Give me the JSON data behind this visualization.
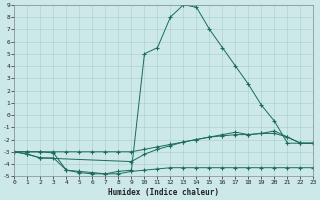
{
  "xlabel": "Humidex (Indice chaleur)",
  "bg_color": "#cce8e8",
  "grid_color": "#aacccc",
  "line_color": "#1a6b5a",
  "ylim": [
    -5,
    9
  ],
  "xlim": [
    0,
    23
  ],
  "yticks": [
    -5,
    -4,
    -3,
    -2,
    -1,
    0,
    1,
    2,
    3,
    4,
    5,
    6,
    7,
    8,
    9
  ],
  "xticks": [
    0,
    1,
    2,
    3,
    4,
    5,
    6,
    7,
    8,
    9,
    10,
    11,
    12,
    13,
    14,
    15,
    16,
    17,
    18,
    19,
    20,
    21,
    22,
    23
  ],
  "s1_x": [
    0,
    1,
    2,
    3,
    4,
    5,
    6,
    7,
    8,
    9,
    10,
    11,
    12,
    13,
    14,
    15,
    16,
    17,
    18,
    19,
    20,
    21,
    22,
    23
  ],
  "s1_y": [
    -3,
    -3.2,
    -3.5,
    -3.5,
    -4.5,
    -4.7,
    -4.8,
    -4.8,
    -4.6,
    -4.5,
    5.0,
    5.5,
    8.0,
    9.0,
    8.8,
    7.0,
    5.5,
    4.0,
    2.5,
    0.8,
    -0.5,
    -2.3,
    -2.3,
    -2.3
  ],
  "s2_x": [
    0,
    1,
    2,
    9,
    10,
    11,
    12,
    13,
    14,
    15,
    16,
    17,
    18,
    19,
    20,
    21,
    22,
    23
  ],
  "s2_y": [
    -3,
    -3.2,
    -3.5,
    -3.8,
    -3.2,
    -2.8,
    -2.5,
    -2.2,
    -2.0,
    -1.8,
    -1.6,
    -1.4,
    -1.6,
    -1.5,
    -1.3,
    -1.8,
    -2.3,
    -2.3
  ],
  "s3_x": [
    0,
    1,
    2,
    3,
    4,
    5,
    6,
    7,
    8,
    9,
    10,
    11,
    12,
    13,
    14,
    15,
    16,
    17,
    18,
    19,
    20,
    21,
    22,
    23
  ],
  "s3_y": [
    -3,
    -3,
    -3,
    -3,
    -3,
    -3,
    -3,
    -3,
    -3,
    -3,
    -2.8,
    -2.6,
    -2.4,
    -2.2,
    -2.0,
    -1.8,
    -1.7,
    -1.6,
    -1.6,
    -1.5,
    -1.5,
    -1.8,
    -2.3,
    -2.3
  ],
  "s4_x": [
    0,
    1,
    2,
    3,
    4,
    5,
    6,
    7,
    8,
    9,
    10,
    11,
    12,
    13,
    14,
    15,
    16,
    17,
    18,
    19,
    20,
    21,
    22,
    23
  ],
  "s4_y": [
    -3,
    -3,
    -3,
    -3.1,
    -4.5,
    -4.6,
    -4.7,
    -4.8,
    -4.8,
    -4.6,
    -4.5,
    -4.4,
    -4.3,
    -4.3,
    -4.3,
    -4.3,
    -4.3,
    -4.3,
    -4.3,
    -4.3,
    -4.3,
    -4.3,
    -4.3,
    -4.3
  ]
}
